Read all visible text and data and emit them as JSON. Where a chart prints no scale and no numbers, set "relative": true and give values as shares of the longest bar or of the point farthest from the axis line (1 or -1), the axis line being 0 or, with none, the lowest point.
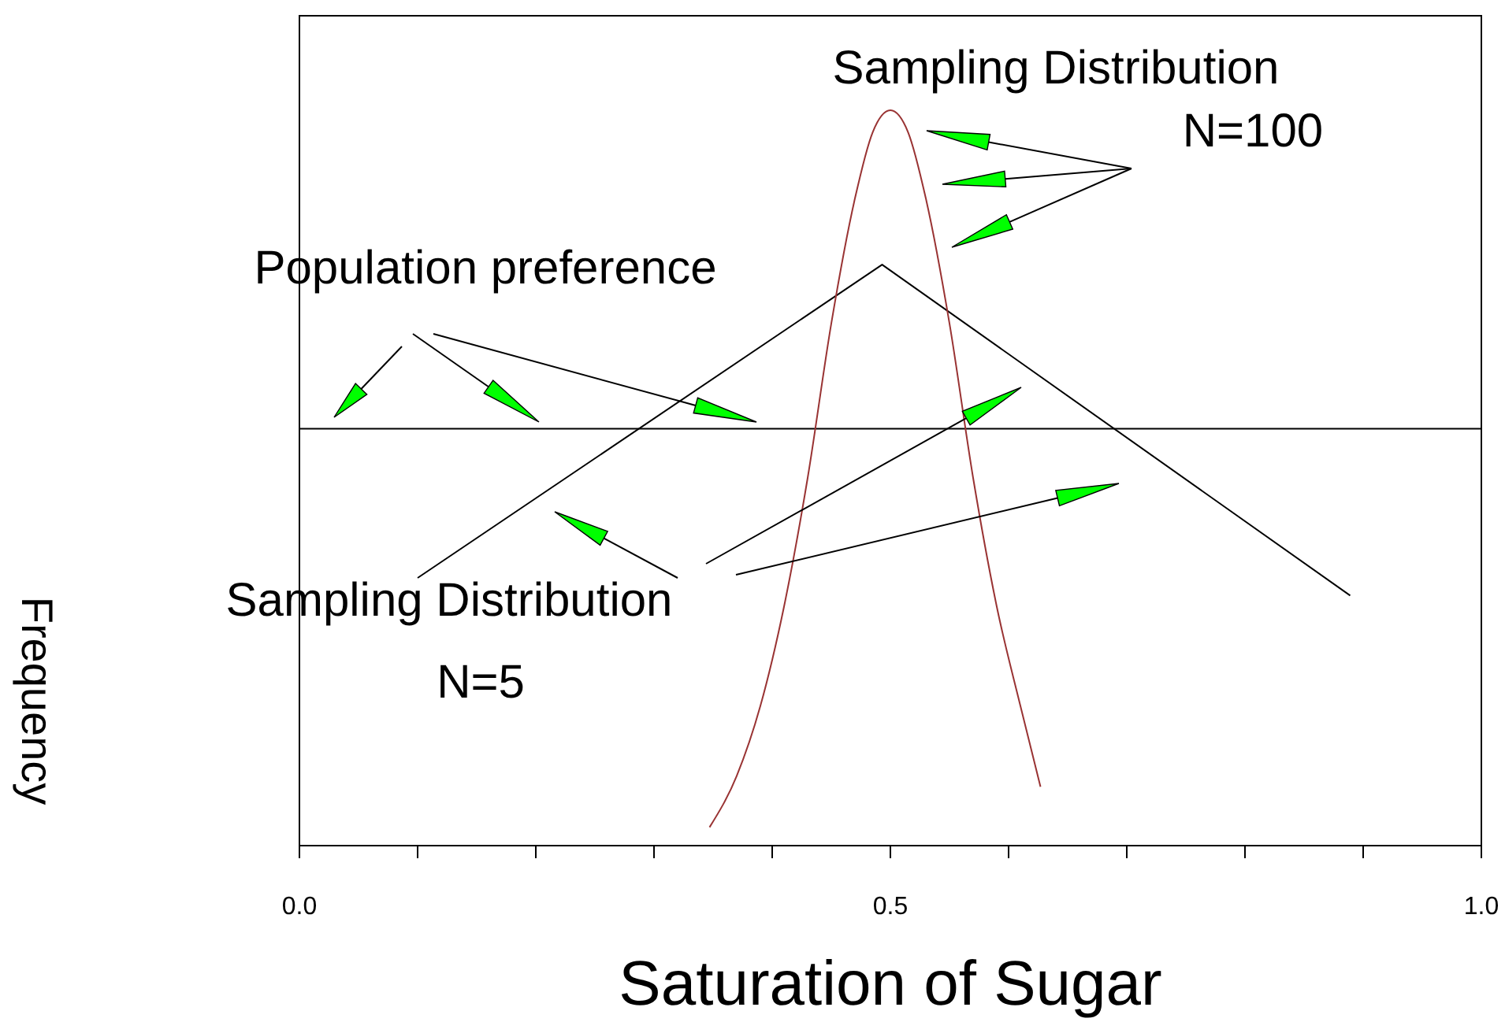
{
  "chart_data": {
    "type": "line",
    "relative": true,
    "xlabel": "Saturation of Sugar",
    "ylabel": "Frequency",
    "xlim": [
      0,
      1
    ],
    "xticks": [
      {
        "value": 0,
        "label": "0.0"
      },
      {
        "value": 0.1,
        "label": null
      },
      {
        "value": 0.2,
        "label": null
      },
      {
        "value": 0.3,
        "label": null
      },
      {
        "value": 0.4,
        "label": null
      },
      {
        "value": 0.5,
        "label": "0.5"
      },
      {
        "value": 0.6,
        "label": null
      },
      {
        "value": 0.7,
        "label": null
      },
      {
        "value": 0.8,
        "label": null
      },
      {
        "value": 0.9,
        "label": null
      },
      {
        "value": 1,
        "label": "1.0"
      }
    ],
    "marker": "none",
    "line_style": "solid",
    "annotations": [
      "Sampling Distribution\nN=100",
      "Population preference",
      "Sampling Distribution\nN=5"
    ],
    "series": [
      {
        "color": "#000000",
        "x": [
          0,
          1
        ],
        "values": [
          0.567,
          0.567
        ]
      },
      {
        "color": "#000000",
        "x": [
          0.1,
          0.493,
          0.889
        ],
        "values": [
          0.364,
          0.79,
          0.34
        ]
      },
      {
        "color": "#993333",
        "x": [
          0.347,
          0.37,
          0.39,
          0.41,
          0.43,
          0.45,
          0.47,
          0.485,
          0.5,
          0.515,
          0.53,
          0.55,
          0.57,
          0.59,
          0.61,
          0.627
        ],
        "values": [
          0.025,
          0.095,
          0.19,
          0.325,
          0.5,
          0.71,
          0.88,
          0.97,
          1,
          0.97,
          0.88,
          0.71,
          0.5,
          0.325,
          0.19,
          0.08
        ]
      }
    ]
  }
}
